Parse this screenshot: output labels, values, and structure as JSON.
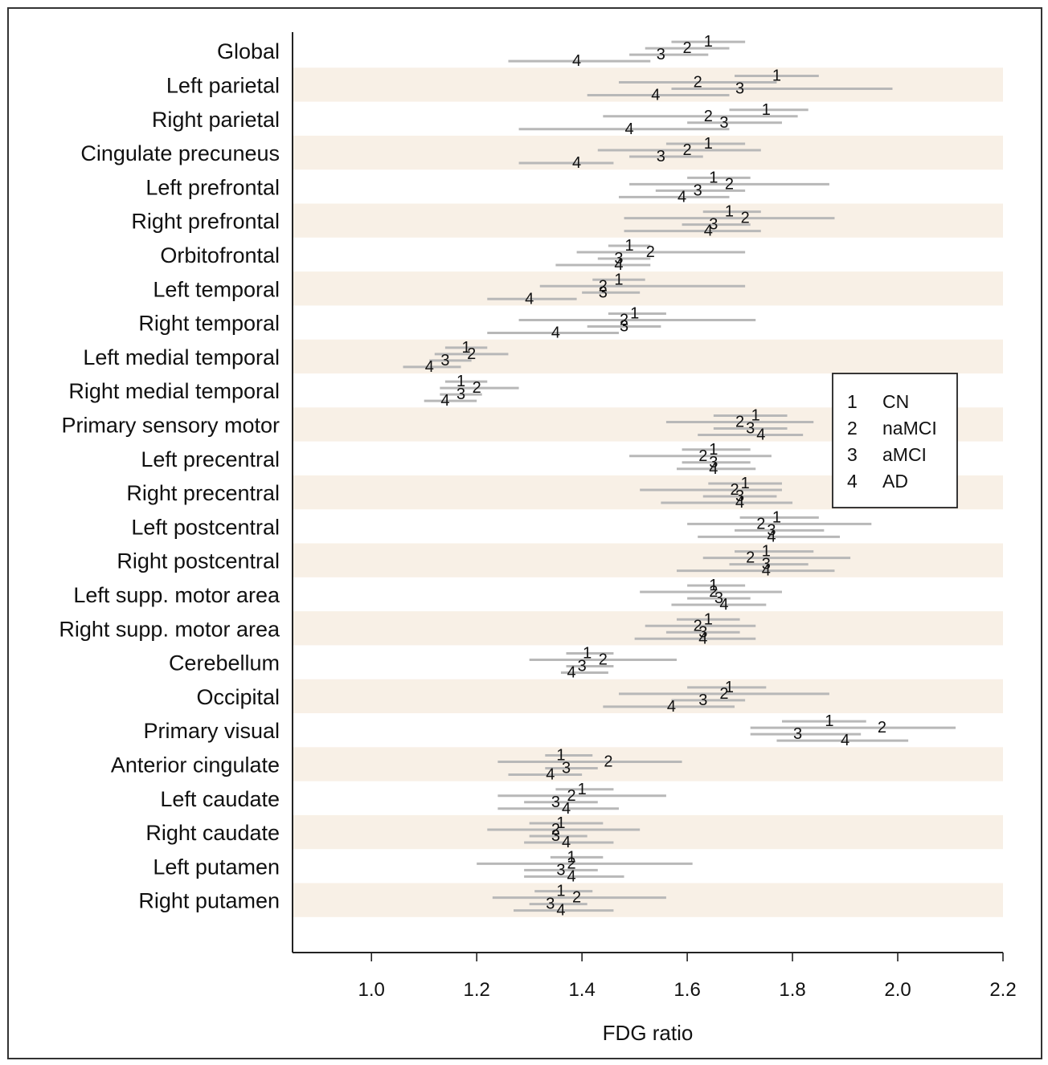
{
  "chart_data": {
    "type": "dot-plot with intervals",
    "xlabel": "FDG ratio",
    "xlim": [
      0.85,
      2.2
    ],
    "x_ticks": [
      "1.0",
      "1.2",
      "1.4",
      "1.6",
      "1.8",
      "2.0",
      "2.2"
    ],
    "x_tick_values": [
      1.0,
      1.2,
      1.4,
      1.6,
      1.8,
      2.0,
      2.2
    ],
    "band_color": "#f8f0e6",
    "interval_color": "#b8b8b8",
    "legend": {
      "placement": "right",
      "entries": [
        {
          "marker": "1",
          "label": "CN"
        },
        {
          "marker": "2",
          "label": "naMCI"
        },
        {
          "marker": "3",
          "label": "aMCI"
        },
        {
          "marker": "4",
          "label": "AD"
        }
      ]
    },
    "series_markers": [
      "1",
      "2",
      "3",
      "4"
    ],
    "regions": [
      {
        "name": "Global",
        "points": [
          [
            1.64,
            1.57,
            1.71
          ],
          [
            1.6,
            1.52,
            1.68
          ],
          [
            1.55,
            1.49,
            1.64
          ],
          [
            1.39,
            1.26,
            1.53
          ]
        ]
      },
      {
        "name": "Left parietal",
        "points": [
          [
            1.77,
            1.69,
            1.85
          ],
          [
            1.62,
            1.47,
            1.77
          ],
          [
            1.7,
            1.57,
            1.99
          ],
          [
            1.54,
            1.41,
            1.68
          ]
        ]
      },
      {
        "name": "Right parietal",
        "points": [
          [
            1.75,
            1.68,
            1.83
          ],
          [
            1.64,
            1.44,
            1.81
          ],
          [
            1.67,
            1.6,
            1.78
          ],
          [
            1.49,
            1.28,
            1.68
          ]
        ]
      },
      {
        "name": "Cingulate precuneus",
        "points": [
          [
            1.64,
            1.56,
            1.71
          ],
          [
            1.6,
            1.43,
            1.74
          ],
          [
            1.55,
            1.49,
            1.63
          ],
          [
            1.39,
            1.28,
            1.46
          ]
        ]
      },
      {
        "name": "Left prefrontal",
        "points": [
          [
            1.65,
            1.6,
            1.72
          ],
          [
            1.68,
            1.49,
            1.87
          ],
          [
            1.62,
            1.54,
            1.71
          ],
          [
            1.59,
            1.47,
            1.68
          ]
        ]
      },
      {
        "name": "Right prefrontal",
        "points": [
          [
            1.68,
            1.63,
            1.74
          ],
          [
            1.71,
            1.48,
            1.88
          ],
          [
            1.65,
            1.59,
            1.72
          ],
          [
            1.64,
            1.48,
            1.74
          ]
        ]
      },
      {
        "name": "Orbitofrontal",
        "points": [
          [
            1.49,
            1.45,
            1.53
          ],
          [
            1.53,
            1.39,
            1.71
          ],
          [
            1.47,
            1.43,
            1.53
          ],
          [
            1.47,
            1.35,
            1.53
          ]
        ]
      },
      {
        "name": "Left temporal",
        "points": [
          [
            1.47,
            1.42,
            1.52
          ],
          [
            1.44,
            1.32,
            1.71
          ],
          [
            1.44,
            1.4,
            1.51
          ],
          [
            1.3,
            1.22,
            1.39
          ]
        ]
      },
      {
        "name": "Right temporal",
        "points": [
          [
            1.5,
            1.45,
            1.56
          ],
          [
            1.48,
            1.28,
            1.73
          ],
          [
            1.48,
            1.41,
            1.55
          ],
          [
            1.35,
            1.22,
            1.47
          ]
        ]
      },
      {
        "name": "Left medial temporal",
        "points": [
          [
            1.18,
            1.14,
            1.22
          ],
          [
            1.19,
            1.12,
            1.26
          ],
          [
            1.14,
            1.11,
            1.19
          ],
          [
            1.11,
            1.06,
            1.17
          ]
        ]
      },
      {
        "name": "Right medial temporal",
        "points": [
          [
            1.17,
            1.14,
            1.22
          ],
          [
            1.2,
            1.13,
            1.28
          ],
          [
            1.17,
            1.13,
            1.21
          ],
          [
            1.14,
            1.1,
            1.2
          ]
        ]
      },
      {
        "name": "Primary sensory motor",
        "points": [
          [
            1.73,
            1.65,
            1.79
          ],
          [
            1.7,
            1.56,
            1.84
          ],
          [
            1.72,
            1.65,
            1.79
          ],
          [
            1.74,
            1.62,
            1.82
          ]
        ]
      },
      {
        "name": "Left precentral",
        "points": [
          [
            1.65,
            1.59,
            1.72
          ],
          [
            1.63,
            1.49,
            1.76
          ],
          [
            1.65,
            1.59,
            1.72
          ],
          [
            1.65,
            1.58,
            1.73
          ]
        ]
      },
      {
        "name": "Right precentral",
        "points": [
          [
            1.71,
            1.64,
            1.78
          ],
          [
            1.69,
            1.51,
            1.78
          ],
          [
            1.7,
            1.63,
            1.77
          ],
          [
            1.7,
            1.55,
            1.8
          ]
        ]
      },
      {
        "name": "Left postcentral",
        "points": [
          [
            1.77,
            1.7,
            1.85
          ],
          [
            1.74,
            1.6,
            1.95
          ],
          [
            1.76,
            1.69,
            1.86
          ],
          [
            1.76,
            1.62,
            1.89
          ]
        ]
      },
      {
        "name": "Right postcentral",
        "points": [
          [
            1.75,
            1.69,
            1.84
          ],
          [
            1.72,
            1.63,
            1.91
          ],
          [
            1.75,
            1.68,
            1.83
          ],
          [
            1.75,
            1.58,
            1.88
          ]
        ]
      },
      {
        "name": "Left supp. motor area",
        "points": [
          [
            1.65,
            1.6,
            1.71
          ],
          [
            1.65,
            1.51,
            1.78
          ],
          [
            1.66,
            1.6,
            1.72
          ],
          [
            1.67,
            1.57,
            1.75
          ]
        ]
      },
      {
        "name": "Right supp. motor area",
        "points": [
          [
            1.64,
            1.58,
            1.7
          ],
          [
            1.62,
            1.52,
            1.73
          ],
          [
            1.63,
            1.56,
            1.7
          ],
          [
            1.63,
            1.5,
            1.73
          ]
        ]
      },
      {
        "name": "Cerebellum",
        "points": [
          [
            1.41,
            1.37,
            1.46
          ],
          [
            1.44,
            1.3,
            1.58
          ],
          [
            1.4,
            1.37,
            1.46
          ],
          [
            1.38,
            1.36,
            1.45
          ]
        ]
      },
      {
        "name": "Occipital",
        "points": [
          [
            1.68,
            1.6,
            1.75
          ],
          [
            1.67,
            1.47,
            1.87
          ],
          [
            1.63,
            1.57,
            1.71
          ],
          [
            1.57,
            1.44,
            1.69
          ]
        ]
      },
      {
        "name": "Primary visual",
        "points": [
          [
            1.87,
            1.78,
            1.94
          ],
          [
            1.97,
            1.72,
            2.11
          ],
          [
            1.81,
            1.72,
            1.93
          ],
          [
            1.9,
            1.77,
            2.02
          ]
        ]
      },
      {
        "name": "Anterior cingulate",
        "points": [
          [
            1.36,
            1.33,
            1.42
          ],
          [
            1.45,
            1.24,
            1.59
          ],
          [
            1.37,
            1.33,
            1.43
          ],
          [
            1.34,
            1.26,
            1.4
          ]
        ]
      },
      {
        "name": "Left caudate",
        "points": [
          [
            1.4,
            1.35,
            1.46
          ],
          [
            1.38,
            1.24,
            1.56
          ],
          [
            1.35,
            1.29,
            1.43
          ],
          [
            1.37,
            1.24,
            1.47
          ]
        ]
      },
      {
        "name": "Right caudate",
        "points": [
          [
            1.36,
            1.3,
            1.44
          ],
          [
            1.35,
            1.22,
            1.51
          ],
          [
            1.35,
            1.3,
            1.41
          ],
          [
            1.37,
            1.29,
            1.46
          ]
        ]
      },
      {
        "name": "Left putamen",
        "points": [
          [
            1.38,
            1.34,
            1.44
          ],
          [
            1.38,
            1.2,
            1.61
          ],
          [
            1.36,
            1.29,
            1.43
          ],
          [
            1.38,
            1.29,
            1.48
          ]
        ]
      },
      {
        "name": "Right putamen",
        "points": [
          [
            1.36,
            1.31,
            1.42
          ],
          [
            1.39,
            1.23,
            1.56
          ],
          [
            1.34,
            1.3,
            1.41
          ],
          [
            1.36,
            1.27,
            1.46
          ]
        ]
      }
    ]
  }
}
